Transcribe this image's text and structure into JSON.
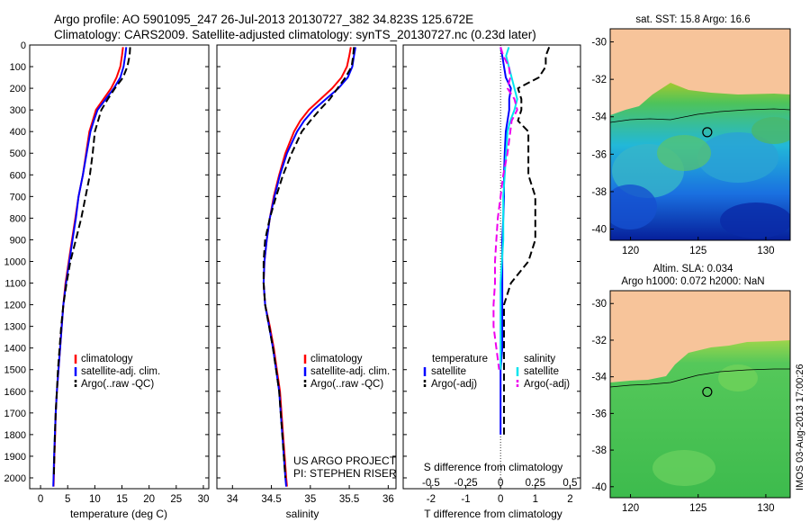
{
  "title": {
    "line1": "Argo profile: AO 5901095_247 26-Jul-2013 20130727_382 34.823S 125.672E",
    "line2": "Climatology: CARS2009. Satellite-adjusted climatology: synTS_20130727.nc (0.23d later)"
  },
  "colors": {
    "climatology": "#ff0000",
    "satellite": "#0000ff",
    "argo": "#000000",
    "salinity_sat": "#00e5ee",
    "salinity_argo": "#ee00ee",
    "land": "#f7c49a"
  },
  "chart_data": [
    {
      "type": "line",
      "xlabel": "temperature (deg C)",
      "xlim": [
        -2,
        31
      ],
      "xticks": [
        0,
        5,
        10,
        15,
        20,
        25,
        30
      ],
      "ylim": [
        0,
        2050
      ],
      "yticks": [
        0,
        100,
        200,
        300,
        400,
        500,
        600,
        700,
        800,
        900,
        1000,
        1100,
        1200,
        1300,
        1400,
        1500,
        1600,
        1700,
        1800,
        1900,
        2000
      ],
      "legend": [
        "climatology",
        "satellite-adj. clim.",
        "Argo(..raw -QC)"
      ],
      "legend_location": "lower-right",
      "series": [
        {
          "name": "climatology",
          "style": "solid",
          "x": [
            15.2,
            15.0,
            14.7,
            14.0,
            13.0,
            11.6,
            10.2,
            9.6,
            9.0,
            8.4,
            7.8,
            7.0,
            6.4,
            5.8,
            5.2,
            4.6,
            4.2,
            3.9,
            3.6,
            3.3,
            3.0,
            2.8,
            2.7,
            2.55,
            2.45,
            2.4
          ],
          "y": [
            10,
            50,
            100,
            150,
            200,
            250,
            300,
            350,
            400,
            500,
            600,
            700,
            800,
            900,
            1000,
            1100,
            1200,
            1300,
            1400,
            1500,
            1600,
            1700,
            1800,
            1900,
            2000,
            2040
          ]
        },
        {
          "name": "satellite-adj. clim.",
          "style": "solid",
          "x": [
            15.8,
            15.6,
            15.3,
            14.7,
            13.5,
            12.0,
            10.5,
            9.8,
            9.2,
            8.5,
            7.8,
            7.0,
            6.5,
            5.9,
            5.3,
            4.7,
            4.2,
            3.9,
            3.6,
            3.3,
            3.0,
            2.8,
            2.65,
            2.5,
            2.4,
            2.35
          ],
          "y": [
            10,
            50,
            100,
            150,
            200,
            250,
            300,
            350,
            400,
            500,
            600,
            700,
            800,
            900,
            1000,
            1100,
            1200,
            1300,
            1400,
            1500,
            1600,
            1700,
            1800,
            1900,
            2000,
            2040
          ]
        },
        {
          "name": "Argo(..raw -QC)",
          "style": "dashed",
          "x": [
            16.5,
            16.4,
            16.0,
            15.2,
            13.7,
            12.4,
            11.2,
            10.6,
            10.0,
            9.6,
            9.1,
            8.3,
            7.5,
            6.5,
            5.5,
            4.8,
            4.2,
            3.8,
            3.5,
            3.2,
            3.0,
            2.8,
            2.65,
            2.55,
            2.45
          ],
          "y": [
            10,
            50,
            100,
            150,
            200,
            250,
            300,
            350,
            400,
            500,
            600,
            700,
            800,
            900,
            1000,
            1100,
            1200,
            1300,
            1400,
            1500,
            1600,
            1700,
            1800,
            1900,
            2000
          ]
        }
      ]
    },
    {
      "type": "line",
      "xlabel": "salinity",
      "xlim": [
        33.8,
        36.1
      ],
      "xticks": [
        34,
        34.5,
        35,
        35.5,
        36
      ],
      "ylim": [
        0,
        2050
      ],
      "legend": [
        "climatology",
        "satellite-adj. clim.",
        "Argo(..raw -QC)"
      ],
      "legend_location": "lower-right",
      "annotations": [
        "US ARGO PROJECT",
        "PI: STEPHEN RISER"
      ],
      "series": [
        {
          "name": "climatology",
          "style": "solid",
          "x": [
            35.52,
            35.5,
            35.47,
            35.4,
            35.28,
            35.13,
            34.98,
            34.87,
            34.79,
            34.68,
            34.6,
            34.53,
            34.48,
            34.44,
            34.41,
            34.4,
            34.42,
            34.48,
            34.53,
            34.57,
            34.61,
            34.63,
            34.65,
            34.67,
            34.69,
            34.7
          ],
          "y": [
            10,
            50,
            100,
            150,
            200,
            250,
            300,
            350,
            400,
            500,
            600,
            700,
            800,
            900,
            1000,
            1100,
            1200,
            1300,
            1400,
            1500,
            1600,
            1700,
            1800,
            1900,
            2000,
            2040
          ]
        },
        {
          "name": "satellite-adj. clim.",
          "style": "solid",
          "x": [
            35.58,
            35.56,
            35.54,
            35.48,
            35.36,
            35.2,
            35.04,
            34.92,
            34.83,
            34.7,
            34.61,
            34.54,
            34.48,
            34.44,
            34.41,
            34.4,
            34.42,
            34.47,
            34.52,
            34.56,
            34.6,
            34.62,
            34.64,
            34.66,
            34.68,
            34.69
          ],
          "y": [
            10,
            50,
            100,
            150,
            200,
            250,
            300,
            350,
            400,
            500,
            600,
            700,
            800,
            900,
            1000,
            1100,
            1200,
            1300,
            1400,
            1500,
            1600,
            1700,
            1800,
            1900,
            2000,
            2040
          ]
        },
        {
          "name": "Argo(..raw -QC)",
          "style": "dashed",
          "x": [
            35.56,
            35.55,
            35.53,
            35.45,
            35.35,
            35.25,
            35.12,
            35.0,
            34.89,
            34.76,
            34.65,
            34.56,
            34.48,
            34.42,
            34.4,
            34.4,
            34.42,
            34.47,
            34.52,
            34.56,
            34.6,
            34.62,
            34.64,
            34.66,
            34.68
          ],
          "y": [
            10,
            50,
            100,
            150,
            200,
            250,
            300,
            350,
            400,
            500,
            600,
            700,
            800,
            900,
            1000,
            1100,
            1200,
            1300,
            1400,
            1500,
            1600,
            1700,
            1800,
            1900,
            2000
          ]
        }
      ]
    },
    {
      "type": "line",
      "xlabel": "T difference from climatology",
      "xlabel_top": "S difference from climatology",
      "xlim": [
        -2.8,
        2.3
      ],
      "xticks": [
        -2,
        -1,
        0,
        1,
        2
      ],
      "sticks": [
        "-0.5",
        "-0.25",
        "0",
        "0.25",
        "0.5"
      ],
      "slim": [
        -0.7,
        0.575
      ],
      "ylim": [
        0,
        2050
      ],
      "legend": {
        "temperature_header": "temperature",
        "salinity_header": "salinity",
        "items": [
          "satellite",
          "Argo(-adj)",
          "satellite",
          "Argo(-adj)"
        ]
      },
      "series": [
        {
          "name": "temperature satellite",
          "variable": "T",
          "style": "solid",
          "x": [
            0.0,
            0.05,
            0.1,
            0.15,
            0.3,
            0.25,
            0.25,
            0.2,
            0.15,
            0.12,
            0.1,
            0.1,
            0.08,
            0.05,
            0.05,
            0.05,
            0.05,
            0.05,
            0.05,
            0.0,
            0.0,
            0.0,
            0.0
          ],
          "y": [
            10,
            50,
            100,
            150,
            200,
            250,
            300,
            350,
            400,
            500,
            600,
            700,
            800,
            900,
            1000,
            1100,
            1200,
            1300,
            1400,
            1500,
            1600,
            1700,
            1800
          ]
        },
        {
          "name": "temperature Argo(-adj)",
          "variable": "T",
          "style": "dashed",
          "x": [
            1.4,
            1.3,
            1.3,
            1.1,
            0.5,
            0.6,
            0.6,
            0.5,
            0.8,
            0.8,
            0.8,
            1.0,
            1.0,
            1.0,
            0.8,
            0.3,
            0.1,
            0.1,
            0.1,
            0.1,
            0.1,
            0.1,
            0.1
          ],
          "y": [
            10,
            50,
            100,
            150,
            200,
            250,
            300,
            350,
            400,
            500,
            600,
            700,
            800,
            900,
            1000,
            1100,
            1200,
            1300,
            1400,
            1500,
            1600,
            1700,
            1800
          ]
        },
        {
          "name": "salinity satellite",
          "variable": "S",
          "style": "solid",
          "x": [
            0.06,
            0.04,
            0.06,
            0.08,
            0.1,
            0.12,
            0.1,
            0.07,
            0.05,
            0.04,
            0.03,
            0.02,
            0.02,
            0.02,
            0.01,
            0.0,
            0.0,
            0.0,
            0.0,
            0.0
          ],
          "y": [
            10,
            50,
            100,
            150,
            200,
            250,
            300,
            350,
            400,
            500,
            600,
            700,
            800,
            900,
            1000,
            1100,
            1200,
            1300,
            1400,
            1500
          ]
        },
        {
          "name": "salinity Argo(-adj)",
          "variable": "S",
          "style": "dashed",
          "x": [
            0.0,
            0.02,
            0.06,
            0.07,
            0.05,
            0.1,
            0.12,
            0.08,
            0.07,
            0.05,
            0.02,
            0.0,
            -0.02,
            -0.03,
            -0.04,
            -0.04,
            -0.05,
            -0.05,
            -0.03,
            -0.01
          ],
          "y": [
            10,
            50,
            100,
            150,
            200,
            250,
            300,
            350,
            400,
            500,
            600,
            700,
            800,
            900,
            1000,
            1100,
            1200,
            1300,
            1400,
            1500
          ]
        }
      ]
    },
    {
      "type": "heatmap",
      "title": "sat. SST: 15.8 Argo: 16.6",
      "xticks": [
        120,
        125,
        130
      ],
      "yticks": [
        -30,
        -32,
        -34,
        -36,
        -38,
        -40
      ],
      "xlim": [
        118.5,
        131.8
      ],
      "ylim": [
        -40.6,
        -29.3
      ],
      "marker": {
        "lon": 125.672,
        "lat": -34.823
      }
    },
    {
      "type": "heatmap",
      "title_line1": "Altim. SLA: 0.034",
      "title_line2": "Argo h1000: 0.072 h2000: NaN",
      "xticks": [
        120,
        125,
        130
      ],
      "yticks": [
        -30,
        -32,
        -34,
        -36,
        -38,
        -40
      ],
      "xlim": [
        118.5,
        131.8
      ],
      "ylim": [
        -40.6,
        -29.3
      ],
      "marker": {
        "lon": 125.672,
        "lat": -34.823
      }
    }
  ],
  "footer": "IMOS 03-Aug-2013 17:00:26"
}
